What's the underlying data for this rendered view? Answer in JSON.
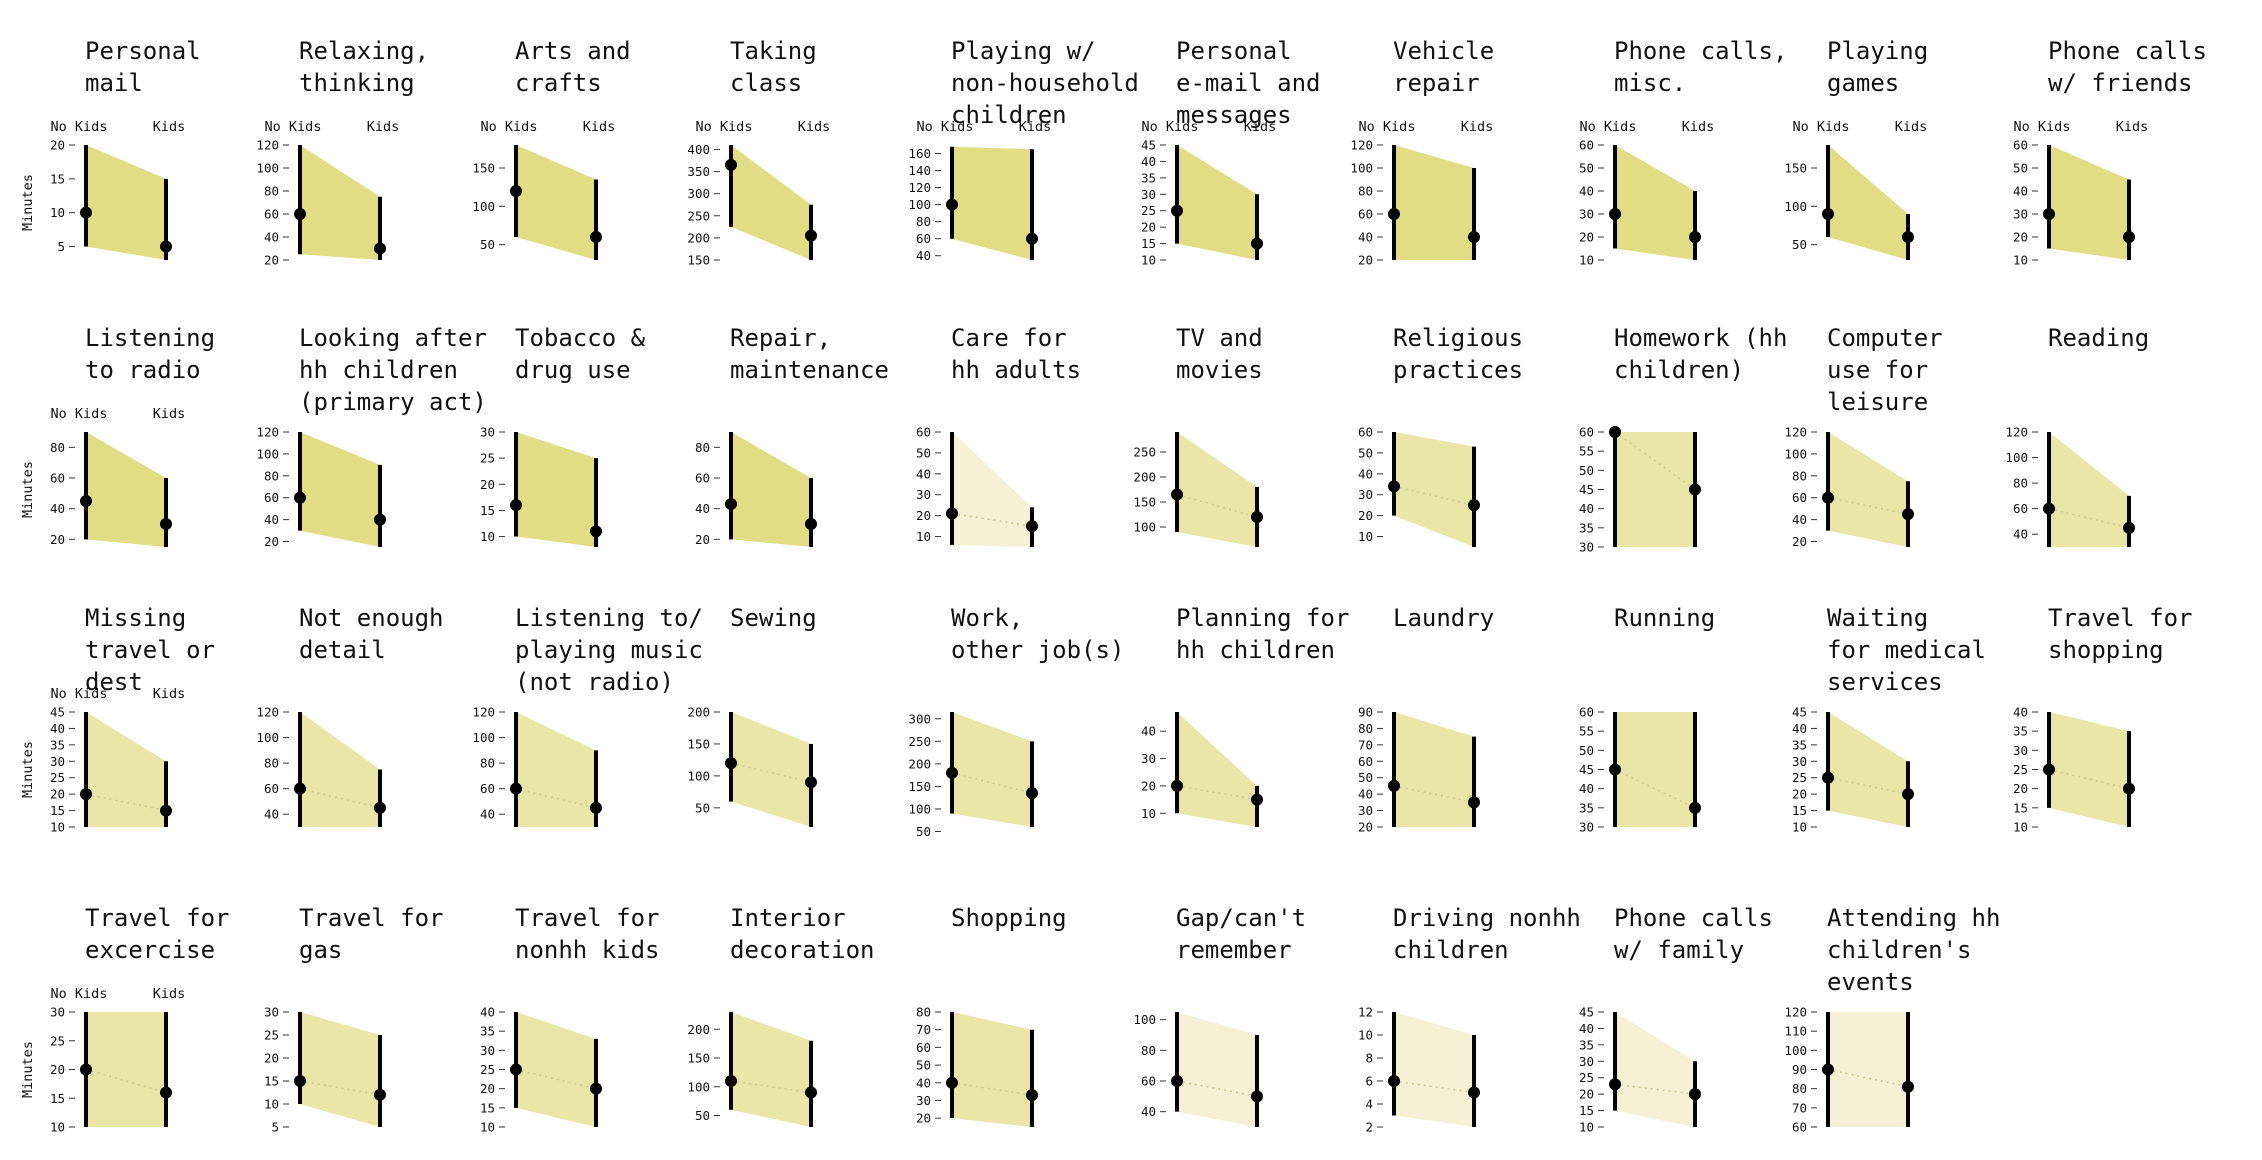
{
  "colors": {
    "fill_strong": "#e0dd85",
    "fill_medium": "#e9e6a8",
    "fill_light": "#f4f1d4",
    "line": "#000000",
    "dotted_line": "#cfcc99"
  },
  "labels": {
    "col_no_kids": "No Kids",
    "col_kids": "Kids",
    "y_axis": "Minutes"
  },
  "chart_data": [
    {
      "type": "line",
      "title": [
        "Personal",
        "mail"
      ],
      "ylim": [
        3,
        20
      ],
      "yticks": [
        5,
        10,
        15,
        20
      ],
      "no_kids": {
        "value": 10,
        "lo": 5,
        "hi": 20
      },
      "kids": {
        "value": 5,
        "lo": 3,
        "hi": 15
      },
      "shade": "strong",
      "show_header": true,
      "show_ylabel": true
    },
    {
      "type": "line",
      "title": [
        "Relaxing,",
        "thinking"
      ],
      "ylim": [
        20,
        120
      ],
      "yticks": [
        20,
        40,
        60,
        80,
        100,
        120
      ],
      "no_kids": {
        "value": 60,
        "lo": 25,
        "hi": 120
      },
      "kids": {
        "value": 30,
        "lo": 20,
        "hi": 75
      },
      "shade": "strong",
      "show_header": true
    },
    {
      "type": "line",
      "title": [
        "Arts and",
        "crafts"
      ],
      "ylim": [
        30,
        180
      ],
      "yticks": [
        50,
        100,
        150
      ],
      "no_kids": {
        "value": 120,
        "lo": 60,
        "hi": 180
      },
      "kids": {
        "value": 60,
        "lo": 30,
        "hi": 135
      },
      "shade": "strong",
      "show_header": true
    },
    {
      "type": "line",
      "title": [
        "Taking",
        "class"
      ],
      "ylim": [
        150,
        410
      ],
      "yticks": [
        150,
        200,
        250,
        300,
        350,
        400
      ],
      "no_kids": {
        "value": 365,
        "lo": 225,
        "hi": 410
      },
      "kids": {
        "value": 205,
        "lo": 150,
        "hi": 275
      },
      "shade": "strong",
      "show_header": true
    },
    {
      "type": "line",
      "title": [
        "Playing w/",
        "non-household",
        "children"
      ],
      "ylim": [
        35,
        170
      ],
      "yticks": [
        40,
        60,
        80,
        100,
        120,
        140,
        160
      ],
      "no_kids": {
        "value": 100,
        "lo": 60,
        "hi": 168
      },
      "kids": {
        "value": 60,
        "lo": 35,
        "hi": 165
      },
      "shade": "strong",
      "show_header": true
    },
    {
      "type": "line",
      "title": [
        "Personal",
        "e-mail and",
        "messages"
      ],
      "ylim": [
        10,
        45
      ],
      "yticks": [
        10,
        15,
        20,
        25,
        30,
        35,
        40,
        45
      ],
      "no_kids": {
        "value": 25,
        "lo": 15,
        "hi": 45
      },
      "kids": {
        "value": 15,
        "lo": 10,
        "hi": 30
      },
      "shade": "strong",
      "show_header": true
    },
    {
      "type": "line",
      "title": [
        "Vehicle",
        "repair"
      ],
      "ylim": [
        20,
        120
      ],
      "yticks": [
        20,
        40,
        60,
        80,
        100,
        120
      ],
      "no_kids": {
        "value": 60,
        "lo": 20,
        "hi": 120
      },
      "kids": {
        "value": 40,
        "lo": 20,
        "hi": 100
      },
      "shade": "strong",
      "show_header": true
    },
    {
      "type": "line",
      "title": [
        "Phone calls,",
        "misc."
      ],
      "ylim": [
        10,
        60
      ],
      "yticks": [
        10,
        20,
        30,
        40,
        50,
        60
      ],
      "no_kids": {
        "value": 30,
        "lo": 15,
        "hi": 60
      },
      "kids": {
        "value": 20,
        "lo": 10,
        "hi": 40
      },
      "shade": "strong",
      "show_header": true
    },
    {
      "type": "line",
      "title": [
        "Playing",
        "games"
      ],
      "ylim": [
        30,
        180
      ],
      "yticks": [
        50,
        100,
        150
      ],
      "no_kids": {
        "value": 90,
        "lo": 60,
        "hi": 180
      },
      "kids": {
        "value": 60,
        "lo": 30,
        "hi": 90
      },
      "shade": "strong",
      "show_header": true
    },
    {
      "type": "line",
      "title": [
        "Phone calls",
        "w/ friends"
      ],
      "ylim": [
        10,
        60
      ],
      "yticks": [
        10,
        20,
        30,
        40,
        50,
        60
      ],
      "no_kids": {
        "value": 30,
        "lo": 15,
        "hi": 60
      },
      "kids": {
        "value": 20,
        "lo": 10,
        "hi": 45
      },
      "shade": "strong",
      "show_header": true
    },
    {
      "type": "line",
      "title": [
        "Listening",
        "to radio"
      ],
      "ylim": [
        15,
        90
      ],
      "yticks": [
        20,
        40,
        60,
        80
      ],
      "no_kids": {
        "value": 45,
        "lo": 20,
        "hi": 90
      },
      "kids": {
        "value": 30,
        "lo": 15,
        "hi": 60
      },
      "shade": "strong",
      "show_header": true,
      "show_ylabel": true
    },
    {
      "type": "line",
      "title": [
        "Looking after",
        "hh children",
        "(primary act)"
      ],
      "ylim": [
        15,
        120
      ],
      "yticks": [
        20,
        40,
        60,
        80,
        100,
        120
      ],
      "no_kids": {
        "value": 60,
        "lo": 30,
        "hi": 120
      },
      "kids": {
        "value": 40,
        "lo": 15,
        "hi": 90
      },
      "shade": "strong"
    },
    {
      "type": "line",
      "title": [
        "Tobacco &",
        "drug use"
      ],
      "ylim": [
        8,
        30
      ],
      "yticks": [
        10,
        15,
        20,
        25,
        30
      ],
      "no_kids": {
        "value": 16,
        "lo": 10,
        "hi": 30
      },
      "kids": {
        "value": 11,
        "lo": 8,
        "hi": 25
      },
      "shade": "strong"
    },
    {
      "type": "line",
      "title": [
        "Repair,",
        "maintenance"
      ],
      "ylim": [
        15,
        90
      ],
      "yticks": [
        20,
        40,
        60,
        80
      ],
      "no_kids": {
        "value": 43,
        "lo": 20,
        "hi": 90
      },
      "kids": {
        "value": 30,
        "lo": 15,
        "hi": 60
      },
      "shade": "strong"
    },
    {
      "type": "line",
      "title": [
        "Care for",
        "hh adults"
      ],
      "ylim": [
        5,
        60
      ],
      "yticks": [
        10,
        20,
        30,
        40,
        50,
        60
      ],
      "no_kids": {
        "value": 21,
        "lo": 6,
        "hi": 60
      },
      "kids": {
        "value": 15,
        "lo": 5,
        "hi": 24
      },
      "shade": "light",
      "dotted": true
    },
    {
      "type": "line",
      "title": [
        "TV and",
        "movies"
      ],
      "ylim": [
        60,
        290
      ],
      "yticks": [
        100,
        150,
        200,
        250
      ],
      "no_kids": {
        "value": 165,
        "lo": 90,
        "hi": 290
      },
      "kids": {
        "value": 120,
        "lo": 60,
        "hi": 180
      },
      "shade": "medium",
      "dotted": true
    },
    {
      "type": "line",
      "title": [
        "Religious",
        "practices"
      ],
      "ylim": [
        5,
        60
      ],
      "yticks": [
        10,
        20,
        30,
        40,
        50,
        60
      ],
      "no_kids": {
        "value": 34,
        "lo": 20,
        "hi": 60
      },
      "kids": {
        "value": 25,
        "lo": 5,
        "hi": 53
      },
      "shade": "medium",
      "dotted": true
    },
    {
      "type": "line",
      "title": [
        "Homework (hh",
        "children)"
      ],
      "ylim": [
        30,
        60
      ],
      "yticks": [
        30,
        35,
        40,
        45,
        50,
        55,
        60
      ],
      "no_kids": {
        "value": 60,
        "lo": 30,
        "hi": 60
      },
      "kids": {
        "value": 45,
        "lo": 30,
        "hi": 60
      },
      "shade": "medium",
      "dotted": true
    },
    {
      "type": "line",
      "title": [
        "Computer",
        "use for",
        "leisure"
      ],
      "ylim": [
        15,
        120
      ],
      "yticks": [
        20,
        40,
        60,
        80,
        100,
        120
      ],
      "no_kids": {
        "value": 60,
        "lo": 30,
        "hi": 120
      },
      "kids": {
        "value": 45,
        "lo": 15,
        "hi": 75
      },
      "shade": "medium",
      "dotted": true
    },
    {
      "type": "line",
      "title": [
        "Reading"
      ],
      "ylim": [
        30,
        120
      ],
      "yticks": [
        40,
        60,
        80,
        100,
        120
      ],
      "no_kids": {
        "value": 60,
        "lo": 30,
        "hi": 120
      },
      "kids": {
        "value": 45,
        "lo": 30,
        "hi": 70
      },
      "shade": "medium",
      "dotted": true
    },
    {
      "type": "line",
      "title": [
        "Missing",
        "travel or",
        "dest"
      ],
      "ylim": [
        10,
        45
      ],
      "yticks": [
        10,
        15,
        20,
        25,
        30,
        35,
        40,
        45
      ],
      "no_kids": {
        "value": 20,
        "lo": 10,
        "hi": 45
      },
      "kids": {
        "value": 15,
        "lo": 10,
        "hi": 30
      },
      "shade": "medium",
      "dotted": true,
      "show_header": true,
      "show_ylabel": true
    },
    {
      "type": "line",
      "title": [
        "Not enough",
        "detail"
      ],
      "ylim": [
        30,
        120
      ],
      "yticks": [
        40,
        60,
        80,
        100,
        120
      ],
      "no_kids": {
        "value": 60,
        "lo": 30,
        "hi": 120
      },
      "kids": {
        "value": 45,
        "lo": 30,
        "hi": 75
      },
      "shade": "medium",
      "dotted": true
    },
    {
      "type": "line",
      "title": [
        "Listening to/",
        "playing music",
        "(not radio)"
      ],
      "ylim": [
        30,
        120
      ],
      "yticks": [
        40,
        60,
        80,
        100,
        120
      ],
      "no_kids": {
        "value": 60,
        "lo": 30,
        "hi": 120
      },
      "kids": {
        "value": 45,
        "lo": 30,
        "hi": 90
      },
      "shade": "medium",
      "dotted": true
    },
    {
      "type": "line",
      "title": [
        "Sewing"
      ],
      "ylim": [
        20,
        200
      ],
      "yticks": [
        50,
        100,
        150,
        200
      ],
      "no_kids": {
        "value": 120,
        "lo": 60,
        "hi": 200
      },
      "kids": {
        "value": 90,
        "lo": 20,
        "hi": 150
      },
      "shade": "medium",
      "dotted": true
    },
    {
      "type": "line",
      "title": [
        "Work,",
        "other job(s)"
      ],
      "ylim": [
        60,
        315
      ],
      "yticks": [
        50,
        100,
        150,
        200,
        250,
        300
      ],
      "no_kids": {
        "value": 180,
        "lo": 90,
        "hi": 315
      },
      "kids": {
        "value": 135,
        "lo": 60,
        "hi": 250
      },
      "shade": "medium",
      "dotted": true
    },
    {
      "type": "line",
      "title": [
        "Planning for",
        "hh children"
      ],
      "ylim": [
        5,
        47
      ],
      "yticks": [
        10,
        20,
        30,
        40
      ],
      "no_kids": {
        "value": 20,
        "lo": 10,
        "hi": 47
      },
      "kids": {
        "value": 15,
        "lo": 5,
        "hi": 20
      },
      "shade": "medium",
      "dotted": true
    },
    {
      "type": "line",
      "title": [
        "Laundry"
      ],
      "ylim": [
        20,
        90
      ],
      "yticks": [
        20,
        30,
        40,
        50,
        60,
        70,
        80,
        90
      ],
      "no_kids": {
        "value": 45,
        "lo": 20,
        "hi": 90
      },
      "kids": {
        "value": 35,
        "lo": 20,
        "hi": 75
      },
      "shade": "medium",
      "dotted": true
    },
    {
      "type": "line",
      "title": [
        "Running"
      ],
      "ylim": [
        30,
        60
      ],
      "yticks": [
        30,
        35,
        40,
        45,
        50,
        55,
        60
      ],
      "no_kids": {
        "value": 45,
        "lo": 30,
        "hi": 60
      },
      "kids": {
        "value": 35,
        "lo": 30,
        "hi": 60
      },
      "shade": "medium",
      "dotted": true
    },
    {
      "type": "line",
      "title": [
        "Waiting",
        "for medical",
        "services"
      ],
      "ylim": [
        10,
        45
      ],
      "yticks": [
        10,
        15,
        20,
        25,
        30,
        35,
        40,
        45
      ],
      "no_kids": {
        "value": 25,
        "lo": 15,
        "hi": 45
      },
      "kids": {
        "value": 20,
        "lo": 10,
        "hi": 30
      },
      "shade": "medium",
      "dotted": true
    },
    {
      "type": "line",
      "title": [
        "Travel for",
        "shopping"
      ],
      "ylim": [
        10,
        40
      ],
      "yticks": [
        10,
        15,
        20,
        25,
        30,
        35,
        40
      ],
      "no_kids": {
        "value": 25,
        "lo": 15,
        "hi": 40
      },
      "kids": {
        "value": 20,
        "lo": 10,
        "hi": 35
      },
      "shade": "medium",
      "dotted": true
    },
    {
      "type": "line",
      "title": [
        "Travel for",
        "excercise"
      ],
      "ylim": [
        10,
        30
      ],
      "yticks": [
        10,
        15,
        20,
        25,
        30
      ],
      "no_kids": {
        "value": 20,
        "lo": 10,
        "hi": 30
      },
      "kids": {
        "value": 16,
        "lo": 10,
        "hi": 30
      },
      "shade": "medium",
      "dotted": true,
      "show_header": true,
      "show_ylabel": true
    },
    {
      "type": "line",
      "title": [
        "Travel for",
        "gas"
      ],
      "ylim": [
        5,
        30
      ],
      "yticks": [
        5,
        10,
        15,
        20,
        25,
        30
      ],
      "no_kids": {
        "value": 15,
        "lo": 10,
        "hi": 30
      },
      "kids": {
        "value": 12,
        "lo": 5,
        "hi": 25
      },
      "shade": "medium",
      "dotted": true
    },
    {
      "type": "line",
      "title": [
        "Travel for",
        "nonhh kids"
      ],
      "ylim": [
        10,
        40
      ],
      "yticks": [
        10,
        15,
        20,
        25,
        30,
        35,
        40
      ],
      "no_kids": {
        "value": 25,
        "lo": 15,
        "hi": 40
      },
      "kids": {
        "value": 20,
        "lo": 10,
        "hi": 33
      },
      "shade": "medium",
      "dotted": true
    },
    {
      "type": "line",
      "title": [
        "Interior",
        "decoration"
      ],
      "ylim": [
        30,
        230
      ],
      "yticks": [
        50,
        100,
        150,
        200
      ],
      "no_kids": {
        "value": 110,
        "lo": 60,
        "hi": 230
      },
      "kids": {
        "value": 90,
        "lo": 30,
        "hi": 180
      },
      "shade": "medium",
      "dotted": true
    },
    {
      "type": "line",
      "title": [
        "Shopping"
      ],
      "ylim": [
        15,
        80
      ],
      "yticks": [
        20,
        30,
        40,
        50,
        60,
        70,
        80
      ],
      "no_kids": {
        "value": 40,
        "lo": 20,
        "hi": 80
      },
      "kids": {
        "value": 33,
        "lo": 15,
        "hi": 70
      },
      "shade": "medium",
      "dotted": true
    },
    {
      "type": "line",
      "title": [
        "Gap/can't",
        "remember"
      ],
      "ylim": [
        30,
        105
      ],
      "yticks": [
        40,
        60,
        80,
        100
      ],
      "no_kids": {
        "value": 60,
        "lo": 40,
        "hi": 105
      },
      "kids": {
        "value": 50,
        "lo": 30,
        "hi": 90
      },
      "shade": "light",
      "dotted": true
    },
    {
      "type": "line",
      "title": [
        "Driving nonhh",
        "children"
      ],
      "ylim": [
        2,
        12
      ],
      "yticks": [
        2,
        4,
        6,
        8,
        10,
        12
      ],
      "no_kids": {
        "value": 6,
        "lo": 3,
        "hi": 12
      },
      "kids": {
        "value": 5,
        "lo": 2,
        "hi": 10
      },
      "shade": "light",
      "dotted": true
    },
    {
      "type": "line",
      "title": [
        "Phone calls",
        "w/ family"
      ],
      "ylim": [
        10,
        45
      ],
      "yticks": [
        10,
        15,
        20,
        25,
        30,
        35,
        40,
        45
      ],
      "no_kids": {
        "value": 23,
        "lo": 15,
        "hi": 45
      },
      "kids": {
        "value": 20,
        "lo": 10,
        "hi": 30
      },
      "shade": "light",
      "dotted": true
    },
    {
      "type": "line",
      "title": [
        "Attending hh",
        "children's",
        "events"
      ],
      "ylim": [
        60,
        120
      ],
      "yticks": [
        60,
        70,
        80,
        90,
        100,
        110,
        120
      ],
      "no_kids": {
        "value": 90,
        "lo": 60,
        "hi": 120
      },
      "kids": {
        "value": 81,
        "lo": 60,
        "hi": 120
      },
      "shade": "light",
      "dotted": true
    }
  ]
}
